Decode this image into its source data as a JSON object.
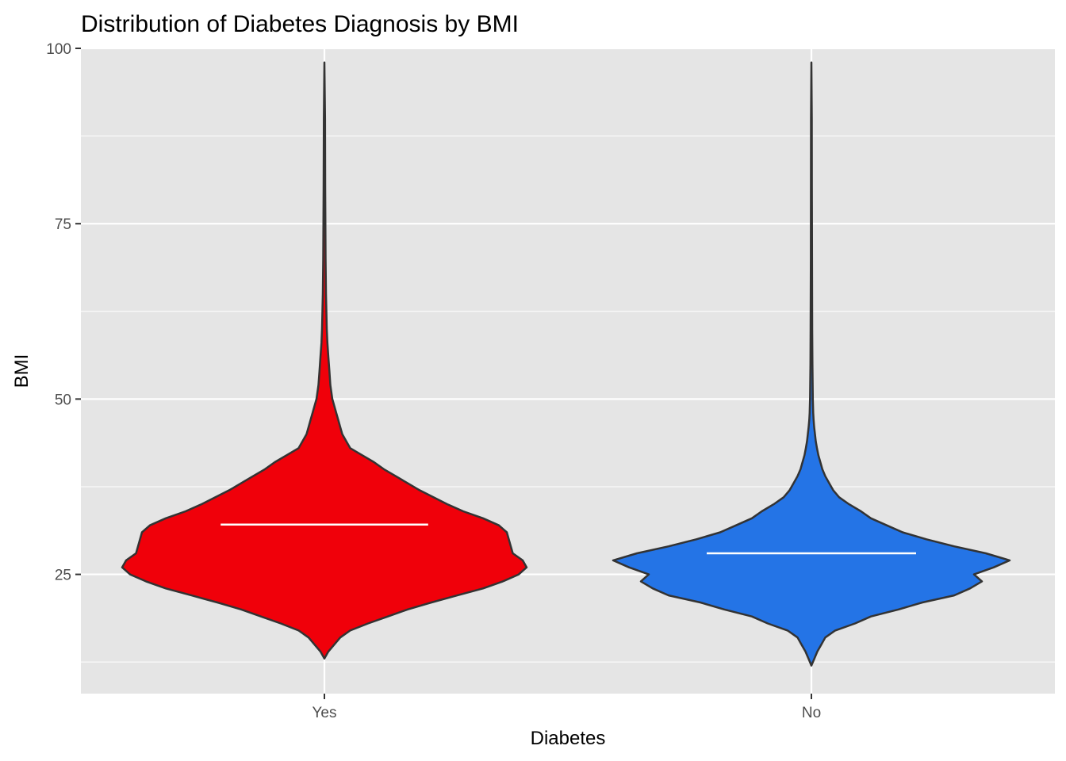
{
  "chart_data": {
    "type": "violin",
    "title": "Distribution of Diabetes Diagnosis by BMI",
    "xlabel": "Diabetes",
    "ylabel": "BMI",
    "categories": [
      "Yes",
      "No"
    ],
    "ylim": [
      8,
      100
    ],
    "yticks": [
      25,
      50,
      75,
      100
    ],
    "grid": true,
    "colors": {
      "panel": "#E5E5E5",
      "grid": "#FFFFFF",
      "outline": "#333333",
      "median_line": "#FFFFFF"
    },
    "series": [
      {
        "category": "Yes",
        "fill": "#F0000A",
        "median": 32.1,
        "density_width_fraction": [
          [
            13,
            0.0
          ],
          [
            14,
            0.02
          ],
          [
            15,
            0.05
          ],
          [
            16,
            0.08
          ],
          [
            17,
            0.13
          ],
          [
            18,
            0.22
          ],
          [
            19,
            0.32
          ],
          [
            20,
            0.42
          ],
          [
            21,
            0.54
          ],
          [
            22,
            0.67
          ],
          [
            23,
            0.8
          ],
          [
            24,
            0.9
          ],
          [
            25,
            0.98
          ],
          [
            26,
            1.02
          ],
          [
            27,
            1.0
          ],
          [
            28,
            0.95
          ],
          [
            29,
            0.94
          ],
          [
            30,
            0.93
          ],
          [
            31,
            0.92
          ],
          [
            32,
            0.88
          ],
          [
            33,
            0.8
          ],
          [
            34,
            0.7
          ],
          [
            35,
            0.62
          ],
          [
            36,
            0.55
          ],
          [
            37,
            0.48
          ],
          [
            38,
            0.42
          ],
          [
            39,
            0.36
          ],
          [
            40,
            0.3
          ],
          [
            41,
            0.25
          ],
          [
            42,
            0.19
          ],
          [
            43,
            0.13
          ],
          [
            44,
            0.11
          ],
          [
            45,
            0.09
          ],
          [
            46,
            0.08
          ],
          [
            47,
            0.07
          ],
          [
            48,
            0.06
          ],
          [
            49,
            0.05
          ],
          [
            50,
            0.04
          ],
          [
            52,
            0.03
          ],
          [
            54,
            0.025
          ],
          [
            56,
            0.02
          ],
          [
            58,
            0.015
          ],
          [
            60,
            0.012
          ],
          [
            65,
            0.008
          ],
          [
            70,
            0.006
          ],
          [
            80,
            0.004
          ],
          [
            90,
            0.003
          ],
          [
            98,
            0.0
          ]
        ]
      },
      {
        "category": "No",
        "fill": "#2474E6",
        "median": 28.0,
        "density_width_fraction": [
          [
            12,
            0.0
          ],
          [
            13,
            0.015
          ],
          [
            14,
            0.03
          ],
          [
            15,
            0.05
          ],
          [
            16,
            0.07
          ],
          [
            17,
            0.12
          ],
          [
            18,
            0.22
          ],
          [
            19,
            0.3
          ],
          [
            20,
            0.44
          ],
          [
            21,
            0.56
          ],
          [
            22,
            0.72
          ],
          [
            23,
            0.8
          ],
          [
            24,
            0.86
          ],
          [
            25,
            0.82
          ],
          [
            26,
            0.92
          ],
          [
            27,
            1.0
          ],
          [
            28,
            0.88
          ],
          [
            29,
            0.72
          ],
          [
            30,
            0.58
          ],
          [
            31,
            0.46
          ],
          [
            32,
            0.38
          ],
          [
            33,
            0.3
          ],
          [
            34,
            0.25
          ],
          [
            35,
            0.19
          ],
          [
            36,
            0.14
          ],
          [
            37,
            0.11
          ],
          [
            38,
            0.09
          ],
          [
            39,
            0.07
          ],
          [
            40,
            0.055
          ],
          [
            41,
            0.045
          ],
          [
            42,
            0.035
          ],
          [
            43,
            0.028
          ],
          [
            44,
            0.022
          ],
          [
            45,
            0.018
          ],
          [
            46,
            0.014
          ],
          [
            47,
            0.011
          ],
          [
            48,
            0.009
          ],
          [
            50,
            0.007
          ],
          [
            55,
            0.005
          ],
          [
            60,
            0.004
          ],
          [
            70,
            0.003
          ],
          [
            80,
            0.0025
          ],
          [
            90,
            0.002
          ],
          [
            98,
            0.0
          ]
        ]
      }
    ]
  }
}
